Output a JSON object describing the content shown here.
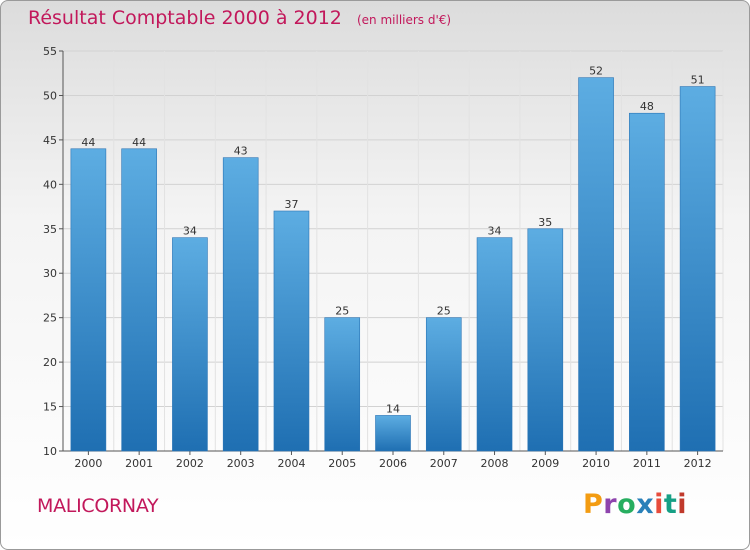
{
  "header": {
    "title": "Résultat Comptable 2000 à 2012",
    "subtitle": "(en milliers d'€)"
  },
  "footer": {
    "commune": "MALICORNAY",
    "logo_letters": [
      "P",
      "r",
      "o",
      "x",
      "i",
      "t",
      "i"
    ],
    "logo_colors": [
      "#f39c12",
      "#8e44ad",
      "#27ae60",
      "#2980b9",
      "#e74c3c",
      "#16a085",
      "#c0392b"
    ]
  },
  "colors": {
    "bar_light": "#5dade2",
    "bar_dark": "#1f6fb2",
    "accent": "#c2185b"
  },
  "chart_data": {
    "type": "bar",
    "title": "Résultat Comptable 2000 à 2012",
    "xlabel": "",
    "ylabel": "",
    "categories": [
      "2000",
      "2001",
      "2002",
      "2003",
      "2004",
      "2005",
      "2006",
      "2007",
      "2008",
      "2009",
      "2010",
      "2011",
      "2012"
    ],
    "values": [
      44,
      44,
      34,
      43,
      37,
      25,
      14,
      25,
      34,
      35,
      52,
      48,
      51
    ],
    "ylim": [
      10,
      55
    ],
    "yticks": [
      10,
      15,
      20,
      25,
      30,
      35,
      40,
      45,
      50,
      55
    ],
    "grid": true
  }
}
